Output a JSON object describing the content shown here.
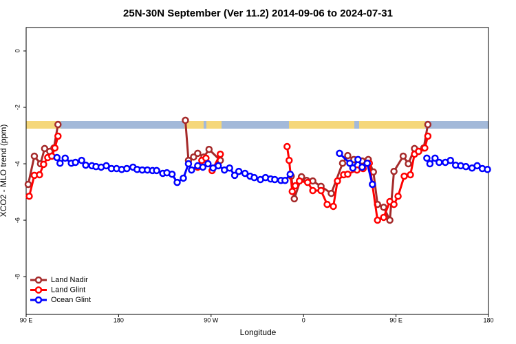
{
  "chart_data": {
    "type": "line",
    "title": "25N-30N September (Ver 11.2)   2014-09-06 to 2024-07-31",
    "xlabel": "Longitude",
    "ylabel": "XCO2 - MLO trend (ppm)",
    "xlim": [
      90,
      540
    ],
    "ylim": [
      -9.34,
      0.83
    ],
    "xticks": [
      {
        "value": 90,
        "label": "90 E"
      },
      180,
      {
        "value": 270,
        "label": "90 W"
      },
      {
        "value": 360,
        "label": "0"
      },
      {
        "value": 450,
        "label": "90 E"
      },
      {
        "value": 540,
        "label": "180"
      }
    ],
    "yticks": [
      0,
      -2,
      -4,
      -6,
      -8
    ],
    "legend": "bottom-left",
    "series": [
      {
        "name": "Land Nadir",
        "color": "#a52a2a",
        "x": [
          92,
          98,
          104,
          108,
          113,
          117,
          121,
          null,
          245,
          248,
          253,
          257,
          263,
          268,
          279,
          null,
          348,
          351,
          358,
          363,
          369,
          377,
          387,
          398,
          403,
          409,
          417,
          423,
          428,
          432,
          438,
          444,
          448,
          457,
          462,
          468,
          472,
          477,
          481
        ],
        "values": [
          -4.73,
          -3.73,
          -4.0,
          -3.46,
          -3.56,
          -3.44,
          -2.61,
          null,
          -2.46,
          -3.88,
          -3.76,
          -3.63,
          -3.76,
          -3.49,
          -3.88,
          null,
          -4.44,
          -5.24,
          -4.46,
          -4.59,
          -4.61,
          -4.8,
          -5.05,
          -3.98,
          -3.71,
          -3.85,
          -3.9,
          -3.85,
          -4.29,
          -5.44,
          -5.54,
          -6.0,
          -4.27,
          -3.73,
          -4.0,
          -3.46,
          -3.56,
          -3.44,
          -2.61
        ]
      },
      {
        "name": "Land Glint",
        "color": "#ff0000",
        "x": [
          93,
          98,
          103,
          107,
          111,
          115,
          118,
          121,
          null,
          257,
          261,
          265,
          271,
          279,
          null,
          344,
          346,
          349,
          352,
          356,
          364,
          369,
          377,
          383,
          389,
          393,
          399,
          403,
          412,
          418,
          424,
          432,
          438,
          444,
          448,
          452,
          458,
          464,
          468,
          472,
          478,
          481
        ],
        "values": [
          -5.15,
          -4.41,
          -4.39,
          -4.02,
          -3.78,
          -3.73,
          -3.44,
          -3.02,
          null,
          -4.12,
          -3.88,
          -3.8,
          -4.24,
          -3.66,
          null,
          -3.39,
          -3.88,
          -4.98,
          -4.78,
          -4.61,
          -4.66,
          -4.95,
          -4.95,
          -5.44,
          -5.51,
          -4.61,
          -4.39,
          -4.37,
          -4.22,
          -4.17,
          -3.98,
          -6.0,
          -5.9,
          -5.34,
          -5.44,
          -5.15,
          -4.44,
          -4.39,
          -3.66,
          -3.56,
          -3.44,
          -3.02
        ]
      },
      {
        "name": "Ocean Glint",
        "color": "#0000ff",
        "x": [
          120,
          123,
          128,
          134,
          138,
          144,
          148,
          154,
          158,
          163,
          168,
          173,
          178,
          183,
          188,
          194,
          198,
          203,
          208,
          213,
          217,
          223,
          227,
          232,
          237,
          243,
          248,
          251,
          257,
          262,
          267,
          272,
          277,
          283,
          288,
          293,
          297,
          303,
          308,
          312,
          318,
          323,
          328,
          332,
          338,
          342,
          347,
          null,
          395,
          405,
          408,
          413,
          417,
          422,
          427,
          null,
          480,
          483,
          488,
          492,
          498,
          503,
          508,
          513,
          518,
          524,
          529,
          534,
          539
        ],
        "values": [
          -3.78,
          -3.98,
          -3.8,
          -3.98,
          -3.95,
          -3.88,
          -4.05,
          -4.07,
          -4.1,
          -4.12,
          -4.07,
          -4.17,
          -4.17,
          -4.2,
          -4.17,
          -4.12,
          -4.2,
          -4.22,
          -4.22,
          -4.24,
          -4.24,
          -4.34,
          -4.32,
          -4.37,
          -4.66,
          -4.51,
          -4.0,
          -4.22,
          -4.07,
          -4.12,
          -4.0,
          -4.15,
          -4.07,
          -4.22,
          -4.15,
          -4.41,
          -4.27,
          -4.34,
          -4.44,
          -4.49,
          -4.56,
          -4.49,
          -4.54,
          -4.56,
          -4.59,
          -4.59,
          -4.37,
          null,
          -3.63,
          -3.98,
          -4.15,
          -3.85,
          -4.12,
          -3.98,
          -4.73,
          null,
          -3.8,
          -4.0,
          -3.8,
          -3.95,
          -3.95,
          -3.88,
          -4.05,
          -4.07,
          -4.1,
          -4.15,
          -4.07,
          -4.17,
          -4.2
        ]
      }
    ]
  }
}
